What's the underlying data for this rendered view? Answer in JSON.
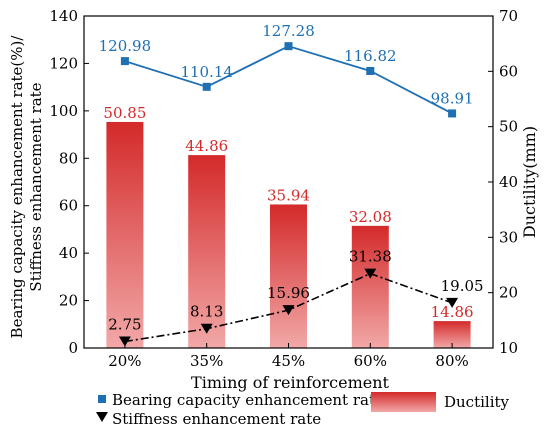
{
  "chart_data": {
    "type": "bar",
    "categories": [
      "20%",
      "35%",
      "45%",
      "60%",
      "80%"
    ],
    "xlabel": "Timing of reinforcement",
    "ylabel_left_line1": "Bearing capacity enhancement rate(%)/",
    "ylabel_left_line2": "Stiffness enhancement rate",
    "ylabel_right": "Ductility(mm)",
    "ylim_left": [
      0,
      140
    ],
    "ylim_right": [
      10,
      70
    ],
    "yticks_left": [
      "0",
      "20",
      "40",
      "60",
      "80",
      "100",
      "120",
      "140"
    ],
    "yticks_right": [
      "10",
      "20",
      "30",
      "40",
      "50",
      "60",
      "70"
    ],
    "series": [
      {
        "name": "Ductility",
        "kind": "bar",
        "axis": "right",
        "values": [
          50.85,
          44.86,
          35.94,
          32.08,
          14.86
        ],
        "labels": [
          "50.85",
          "44.86",
          "35.94",
          "32.08",
          "14.86"
        ],
        "color": "#d42a2a",
        "label_color": "#d42a2a"
      },
      {
        "name": "Bearing capacity enhancement rate",
        "kind": "line",
        "axis": "left",
        "values": [
          120.98,
          110.14,
          127.28,
          116.82,
          98.91
        ],
        "labels": [
          "120.98",
          "110.14",
          "127.28",
          "116.82",
          "98.91"
        ],
        "color": "#1f6fb3",
        "label_color": "#1f6fb3"
      },
      {
        "name": "Stiffness enhancement rate",
        "kind": "line",
        "axis": "left",
        "values": [
          2.75,
          8.13,
          15.96,
          31.38,
          19.05
        ],
        "labels": [
          "2.75",
          "8.13",
          "15.96",
          "31.38",
          "19.05"
        ],
        "color": "#000000",
        "label_color": "#000000"
      }
    ],
    "legend_placement": "bottom"
  }
}
